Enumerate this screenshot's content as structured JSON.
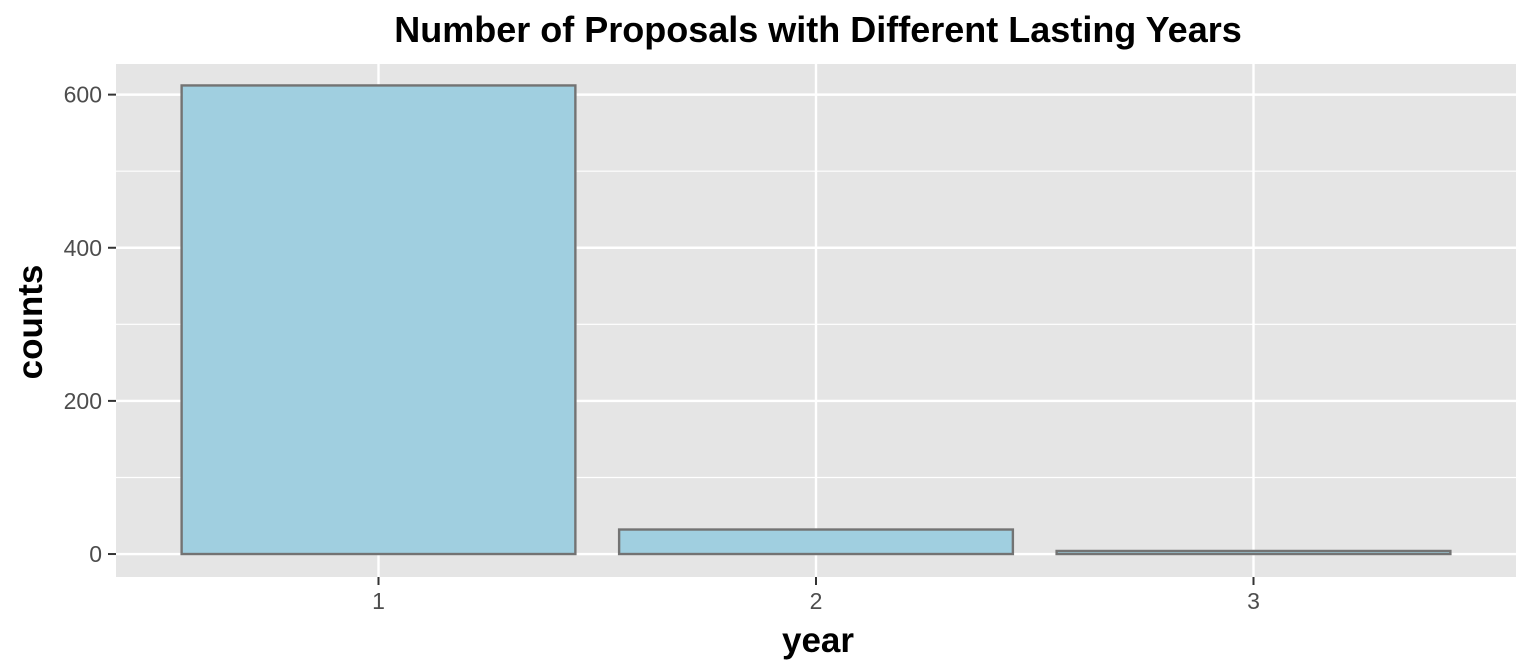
{
  "chart_data": {
    "type": "bar",
    "title": "Number of Proposals with Different Lasting Years",
    "xlabel": "year",
    "ylabel": "counts",
    "categories": [
      "1",
      "2",
      "3"
    ],
    "values": [
      612,
      32,
      4
    ],
    "ylim": [
      -30,
      640
    ],
    "yticks": [
      0,
      200,
      400,
      600
    ],
    "ytick_labels": [
      "0",
      "200",
      "400",
      "600"
    ],
    "grid": true,
    "legend": "none",
    "colors": {
      "panel_background": "#e5e5e5",
      "grid_line": "#ffffff",
      "bar_fill": "#a0cfe0",
      "bar_outline": "#737373",
      "tick_text": "#4d4d4d",
      "tick_mark": "#333333"
    }
  }
}
